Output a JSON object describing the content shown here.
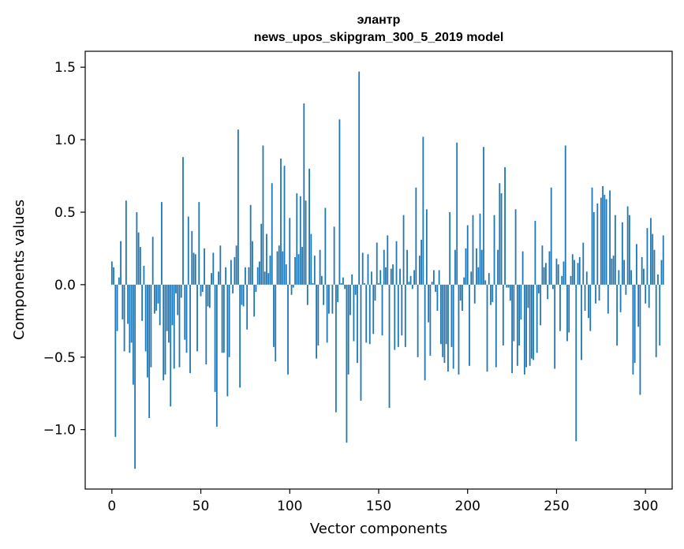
{
  "chart_data": {
    "type": "bar",
    "title_line1": "элантр",
    "title_line2": "news_upos_skipgram_300_5_2019 model",
    "xlabel": "Vector components",
    "ylabel": "Components values",
    "xlim": [
      -15,
      315
    ],
    "ylim": [
      -1.41,
      1.61
    ],
    "xticks": [
      0,
      50,
      100,
      150,
      200,
      250,
      300
    ],
    "xtick_labels": [
      "0",
      "50",
      "100",
      "150",
      "200",
      "250",
      "300"
    ],
    "yticks": [
      -1.0,
      -0.5,
      0.0,
      0.5,
      1.0,
      1.5
    ],
    "ytick_labels": [
      "−1.0",
      "−0.5",
      "0.0",
      "0.5",
      "1.0",
      "1.5"
    ],
    "bar_color": "#1f77b4",
    "values": [
      0.16,
      0.12,
      -1.05,
      -0.32,
      0.05,
      0.3,
      -0.24,
      -0.46,
      0.58,
      -0.27,
      -0.47,
      -0.4,
      -0.69,
      -1.27,
      0.5,
      0.36,
      0.26,
      -0.25,
      0.13,
      -0.46,
      -0.64,
      -0.92,
      -0.57,
      0.33,
      -0.2,
      -0.18,
      -0.13,
      -0.28,
      0.57,
      -0.66,
      -0.62,
      -0.32,
      -0.4,
      -0.84,
      -0.28,
      -0.58,
      -0.06,
      -0.21,
      -0.57,
      -0.09,
      0.88,
      -0.38,
      -0.47,
      0.47,
      -0.61,
      0.37,
      0.22,
      0.21,
      -0.46,
      0.57,
      -0.08,
      -0.05,
      0.25,
      -0.55,
      -0.15,
      -0.16,
      0.08,
      0.22,
      -0.74,
      -0.98,
      0.09,
      0.27,
      -0.47,
      -0.47,
      0.12,
      -0.77,
      -0.5,
      0.17,
      -0.06,
      0.19,
      0.27,
      1.07,
      -0.71,
      -0.14,
      -0.15,
      0.12,
      -0.31,
      0.12,
      0.55,
      0.3,
      -0.22,
      -0.05,
      0.12,
      0.16,
      0.42,
      0.96,
      0.09,
      0.35,
      0.08,
      0.2,
      0.7,
      -0.43,
      -0.53,
      0.23,
      0.27,
      0.87,
      0.23,
      0.82,
      0.14,
      -0.62,
      0.46,
      -0.07,
      -0.02,
      0.19,
      0.63,
      0.21,
      0.61,
      0.26,
      1.25,
      0.58,
      -0.14,
      0.8,
      0.35,
      0.01,
      0.2,
      -0.51,
      -0.42,
      0.24,
      0.06,
      -0.14,
      0.53,
      -0.4,
      -0.2,
      0.0,
      -0.2,
      0.4,
      -0.88,
      -0.12,
      1.14,
      0.01,
      0.05,
      -0.03,
      -1.09,
      -0.62,
      -0.21,
      0.07,
      -0.39,
      -0.07,
      -0.54,
      1.47,
      -0.8,
      0.22,
      0.01,
      -0.4,
      0.21,
      -0.41,
      0.09,
      -0.34,
      -0.11,
      0.29,
      0.01,
      0.1,
      -0.35,
      0.24,
      0.12,
      0.34,
      -0.85,
      0.11,
      0.14,
      -0.45,
      0.3,
      -0.43,
      0.11,
      -0.35,
      0.48,
      -0.43,
      0.24,
      0.02,
      0.06,
      -0.03,
      0.1,
      0.67,
      -0.5,
      0.2,
      0.31,
      1.02,
      -0.66,
      0.52,
      -0.26,
      -0.49,
      0.02,
      0.1,
      -0.05,
      -0.18,
      0.1,
      -0.41,
      -0.5,
      -0.54,
      -0.41,
      -0.6,
      0.5,
      -0.43,
      -0.58,
      0.24,
      0.98,
      -0.62,
      -0.11,
      -0.18,
      0.05,
      0.25,
      0.41,
      -0.56,
      0.09,
      0.48,
      -0.13,
      0.25,
      0.12,
      0.49,
      0.24,
      0.95,
      0.03,
      -0.6,
      0.08,
      -0.14,
      -0.12,
      0.48,
      -0.57,
      0.24,
      0.7,
      0.63,
      -0.42,
      0.81,
      -0.02,
      -0.02,
      -0.11,
      -0.61,
      -0.39,
      0.52,
      -0.56,
      -0.42,
      -0.24,
      0.23,
      -0.62,
      -0.57,
      -0.16,
      -0.56,
      -0.51,
      -0.52,
      0.44,
      -0.47,
      -0.06,
      -0.28,
      0.27,
      0.12,
      0.15,
      -0.1,
      0.23,
      0.67,
      -0.03,
      -0.58,
      0.18,
      0.14,
      -0.32,
      0.06,
      0.16,
      0.96,
      -0.39,
      -0.33,
      0.06,
      0.21,
      0.17,
      -1.08,
      0.15,
      0.19,
      -0.52,
      0.29,
      -0.18,
      0.09,
      -0.23,
      -0.32,
      0.67,
      0.5,
      -0.13,
      0.56,
      -0.11,
      0.6,
      0.68,
      0.62,
      0.59,
      -0.2,
      0.65,
      0.18,
      0.2,
      0.48,
      -0.42,
      0.1,
      -0.19,
      0.43,
      0.17,
      -0.07,
      0.54,
      0.48,
      0.1,
      -0.62,
      -0.54,
      0.28,
      -0.29,
      -0.76,
      0.19,
      0.11,
      -0.13,
      0.39,
      -0.16,
      0.46,
      0.35,
      0.24,
      -0.5,
      0.07,
      -0.42,
      0.17,
      0.34
    ]
  }
}
